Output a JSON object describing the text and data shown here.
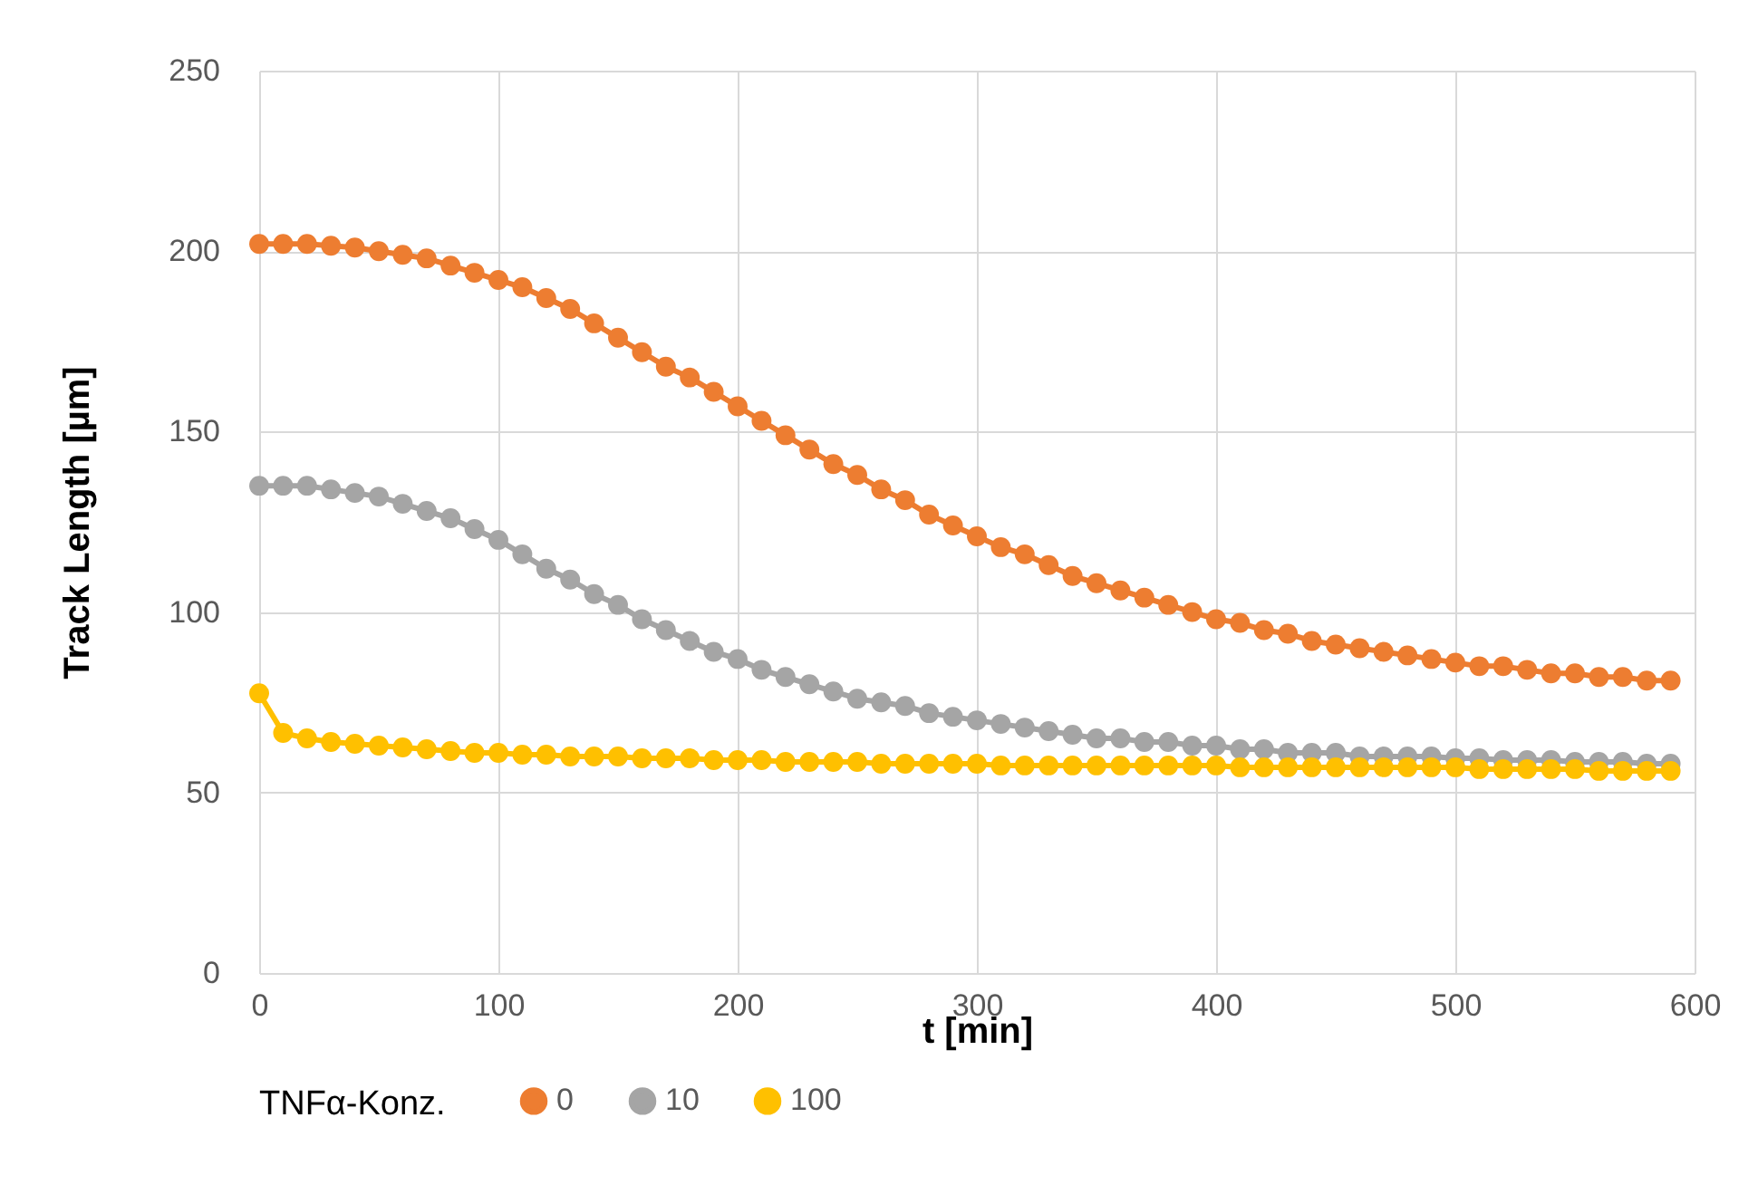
{
  "chart_data": {
    "type": "line",
    "xlabel": "t [min]",
    "ylabel": "Track Length [µm]",
    "legend_title": "TNFα-Konz.",
    "x": [
      0,
      10,
      20,
      30,
      40,
      50,
      60,
      70,
      80,
      90,
      100,
      110,
      120,
      130,
      140,
      150,
      160,
      170,
      180,
      190,
      200,
      210,
      220,
      230,
      240,
      250,
      260,
      270,
      280,
      290,
      300,
      310,
      320,
      330,
      340,
      350,
      360,
      370,
      380,
      390,
      400,
      410,
      420,
      430,
      440,
      450,
      460,
      470,
      480,
      490,
      500,
      510,
      520,
      530,
      540,
      550,
      560,
      570,
      580,
      590
    ],
    "series": [
      {
        "name": "0",
        "color": "#ed7d31",
        "values": [
          202,
          202,
          202,
          201.5,
          201,
          200,
          199,
          198,
          196,
          194,
          192,
          190,
          187,
          184,
          180,
          176,
          172,
          168,
          165,
          161,
          157,
          153,
          149,
          145,
          141,
          138,
          134,
          131,
          127,
          124,
          121,
          118,
          116,
          113,
          110,
          108,
          106,
          104,
          102,
          100,
          98,
          97,
          95,
          94,
          92,
          91,
          90,
          89,
          88,
          87,
          86,
          85,
          85,
          84,
          83,
          83,
          82,
          82,
          81,
          81
        ]
      },
      {
        "name": "10",
        "color": "#a5a5a5",
        "values": [
          135,
          135,
          135,
          134,
          133,
          132,
          130,
          128,
          126,
          123,
          120,
          116,
          112,
          109,
          105,
          102,
          98,
          95,
          92,
          89,
          87,
          84,
          82,
          80,
          78,
          76,
          75,
          74,
          72,
          71,
          70,
          69,
          68,
          67,
          66,
          65,
          65,
          64,
          64,
          63,
          63,
          62,
          62,
          61,
          61,
          61,
          60,
          60,
          60,
          60,
          59.5,
          59.5,
          59,
          59,
          59,
          58.5,
          58.5,
          58.5,
          58,
          58
        ]
      },
      {
        "name": "100",
        "color": "#ffc000",
        "values": [
          77.5,
          66.5,
          65,
          64,
          63.5,
          63,
          62.5,
          62,
          61.5,
          61,
          61,
          60.5,
          60.5,
          60,
          60,
          60,
          59.5,
          59.5,
          59.5,
          59,
          59,
          59,
          58.5,
          58.5,
          58.5,
          58.5,
          58,
          58,
          58,
          58,
          58,
          57.5,
          57.5,
          57.5,
          57.5,
          57.5,
          57.5,
          57.5,
          57.5,
          57.5,
          57.5,
          57,
          57,
          57,
          57,
          57,
          57,
          57,
          57,
          57,
          57,
          56.5,
          56.5,
          56.5,
          56.5,
          56.5,
          56,
          56,
          56,
          56
        ]
      }
    ],
    "xlim": [
      0,
      600
    ],
    "xticks": [
      0,
      100,
      200,
      300,
      400,
      500,
      600
    ],
    "ylim": [
      0,
      250
    ],
    "yticks": [
      0,
      50,
      100,
      150,
      200,
      250
    ],
    "grid": true,
    "legend": "bottom",
    "marker": "circle",
    "line_style": "solid"
  }
}
